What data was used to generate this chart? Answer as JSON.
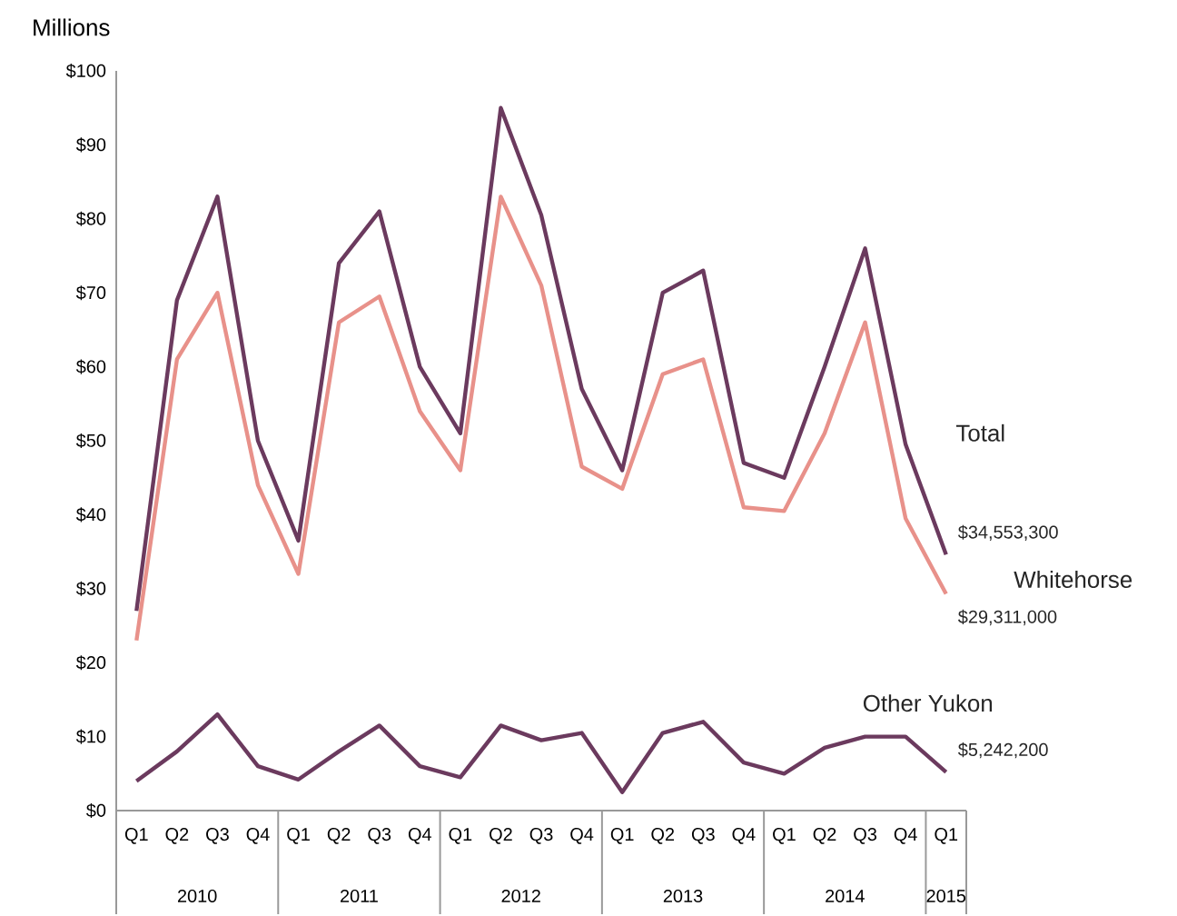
{
  "chart_data": {
    "type": "line",
    "ylabel": "Millions",
    "categories": [
      "Q1",
      "Q2",
      "Q3",
      "Q4",
      "Q1",
      "Q2",
      "Q3",
      "Q4",
      "Q1",
      "Q2",
      "Q3",
      "Q4",
      "Q1",
      "Q2",
      "Q3",
      "Q4",
      "Q1",
      "Q2",
      "Q3",
      "Q4",
      "Q1"
    ],
    "annotations": [
      "2010",
      "2011",
      "2012",
      "2013",
      "2014",
      "2015",
      "$34,553,300",
      "$29,311,000",
      "$5,242,200"
    ],
    "ylim": [
      0,
      100
    ],
    "yticks": [
      {
        "value": 0,
        "label": "$0"
      },
      {
        "value": 10,
        "label": "$10"
      },
      {
        "value": 20,
        "label": "$20"
      },
      {
        "value": 30,
        "label": "$30"
      },
      {
        "value": 40,
        "label": "$40"
      },
      {
        "value": 50,
        "label": "$50"
      },
      {
        "value": 60,
        "label": "$60"
      },
      {
        "value": 70,
        "label": "$70"
      },
      {
        "value": 80,
        "label": "$80"
      },
      {
        "value": 90,
        "label": "$90"
      },
      {
        "value": 100,
        "label": "$100"
      }
    ],
    "line_style": "solid",
    "series": [
      {
        "name": "Total",
        "color": "#6b3a5e",
        "values": [
          27,
          69,
          83,
          50,
          36.5,
          74,
          81,
          60,
          51,
          95,
          80.5,
          57,
          46,
          70,
          73,
          47,
          45,
          60,
          76,
          49.5,
          34.6
        ]
      },
      {
        "name": "Whitehorse",
        "color": "#e8918a",
        "values": [
          23,
          61,
          70,
          44,
          32,
          66,
          69.5,
          54,
          46,
          83,
          71,
          46.5,
          43.5,
          59,
          61,
          41,
          40.5,
          51,
          66,
          39.5,
          29.3
        ]
      },
      {
        "name": "Other Yukon",
        "color": "#6b3a5e",
        "values": [
          4,
          8,
          13,
          6,
          4.2,
          8,
          11.5,
          6,
          4.5,
          11.5,
          9.5,
          10.5,
          2.5,
          10.5,
          12,
          6.5,
          5,
          8.5,
          10,
          10,
          5.2
        ]
      }
    ]
  }
}
